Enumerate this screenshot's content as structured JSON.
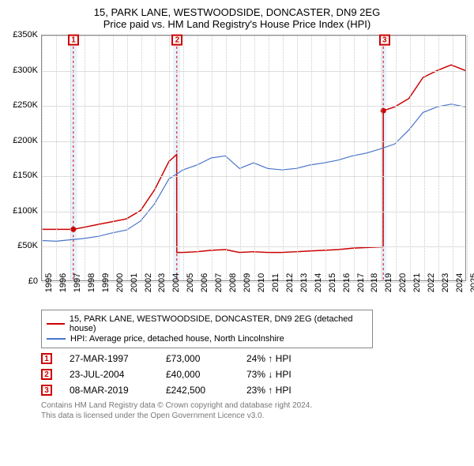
{
  "title": "15, PARK LANE, WESTWOODSIDE, DONCASTER, DN9 2EG",
  "subtitle": "Price paid vs. HM Land Registry's House Price Index (HPI)",
  "chart": {
    "type": "line",
    "ylim": [
      0,
      350000
    ],
    "ytick_step": 50000,
    "yticks": [
      "£0",
      "£50K",
      "£100K",
      "£150K",
      "£200K",
      "£250K",
      "£300K",
      "£350K"
    ],
    "xlim": [
      1995,
      2025
    ],
    "xticks": [
      1995,
      1996,
      1997,
      1998,
      1999,
      2000,
      2001,
      2002,
      2003,
      2004,
      2005,
      2006,
      2007,
      2008,
      2009,
      2010,
      2011,
      2012,
      2013,
      2014,
      2015,
      2016,
      2017,
      2018,
      2019,
      2020,
      2021,
      2022,
      2023,
      2024,
      2025
    ],
    "grid_color": "#cccccc",
    "background_color": "#ffffff",
    "series": [
      {
        "name": "15, PARK LANE, WESTWOODSIDE, DONCASTER, DN9 2EG (detached house)",
        "color": "#cc0000",
        "width": 1.5,
        "data": [
          [
            1995,
            73000
          ],
          [
            1997.23,
            73000
          ],
          [
            1998,
            76000
          ],
          [
            1999,
            80000
          ],
          [
            2000,
            84000
          ],
          [
            2001,
            88000
          ],
          [
            2002,
            100000
          ],
          [
            2003,
            130000
          ],
          [
            2004,
            170000
          ],
          [
            2004.55,
            180000
          ],
          [
            2004.56,
            40000
          ],
          [
            2005,
            40000
          ],
          [
            2006,
            41000
          ],
          [
            2007,
            43000
          ],
          [
            2008,
            44000
          ],
          [
            2009,
            40000
          ],
          [
            2010,
            41000
          ],
          [
            2011,
            40000
          ],
          [
            2012,
            40000
          ],
          [
            2013,
            41000
          ],
          [
            2014,
            42000
          ],
          [
            2015,
            43000
          ],
          [
            2016,
            44000
          ],
          [
            2017,
            46000
          ],
          [
            2018,
            47000
          ],
          [
            2019.18,
            48000
          ],
          [
            2019.19,
            242500
          ],
          [
            2020,
            248000
          ],
          [
            2021,
            260000
          ],
          [
            2022,
            290000
          ],
          [
            2023,
            300000
          ],
          [
            2024,
            308000
          ],
          [
            2025,
            300000
          ]
        ]
      },
      {
        "name": "HPI: Average price, detached house, North Lincolnshire",
        "color": "#4a74c9",
        "width": 1.2,
        "data": [
          [
            1995,
            57000
          ],
          [
            1996,
            56000
          ],
          [
            1997,
            58000
          ],
          [
            1998,
            60000
          ],
          [
            1999,
            63000
          ],
          [
            2000,
            68000
          ],
          [
            2001,
            72000
          ],
          [
            2002,
            85000
          ],
          [
            2003,
            110000
          ],
          [
            2004,
            145000
          ],
          [
            2005,
            158000
          ],
          [
            2006,
            165000
          ],
          [
            2007,
            175000
          ],
          [
            2008,
            178000
          ],
          [
            2009,
            160000
          ],
          [
            2010,
            168000
          ],
          [
            2011,
            160000
          ],
          [
            2012,
            158000
          ],
          [
            2013,
            160000
          ],
          [
            2014,
            165000
          ],
          [
            2015,
            168000
          ],
          [
            2016,
            172000
          ],
          [
            2017,
            178000
          ],
          [
            2018,
            182000
          ],
          [
            2019,
            188000
          ],
          [
            2020,
            195000
          ],
          [
            2021,
            215000
          ],
          [
            2022,
            240000
          ],
          [
            2023,
            248000
          ],
          [
            2024,
            252000
          ],
          [
            2025,
            248000
          ]
        ]
      }
    ],
    "markers": [
      {
        "n": "1",
        "x": 1997.23,
        "color": "#cc0000"
      },
      {
        "n": "2",
        "x": 2004.56,
        "color": "#cc0000"
      },
      {
        "n": "3",
        "x": 2019.19,
        "color": "#cc0000"
      }
    ],
    "highlight_bands": [
      {
        "from": 1997.0,
        "to": 1997.5,
        "color": "#eaf2fb"
      },
      {
        "from": 2004.3,
        "to": 2004.8,
        "color": "#eaf2fb"
      },
      {
        "from": 2019.0,
        "to": 2019.4,
        "color": "#eaf2fb"
      }
    ]
  },
  "events": [
    {
      "n": "1",
      "date": "27-MAR-1997",
      "price": "£73,000",
      "delta": "24% ↑ HPI",
      "color": "#cc0000"
    },
    {
      "n": "2",
      "date": "23-JUL-2004",
      "price": "£40,000",
      "delta": "73% ↓ HPI",
      "color": "#cc0000"
    },
    {
      "n": "3",
      "date": "08-MAR-2019",
      "price": "£242,500",
      "delta": "23% ↑ HPI",
      "color": "#cc0000"
    }
  ],
  "footer1": "Contains HM Land Registry data © Crown copyright and database right 2024.",
  "footer2": "This data is licensed under the Open Government Licence v3.0."
}
